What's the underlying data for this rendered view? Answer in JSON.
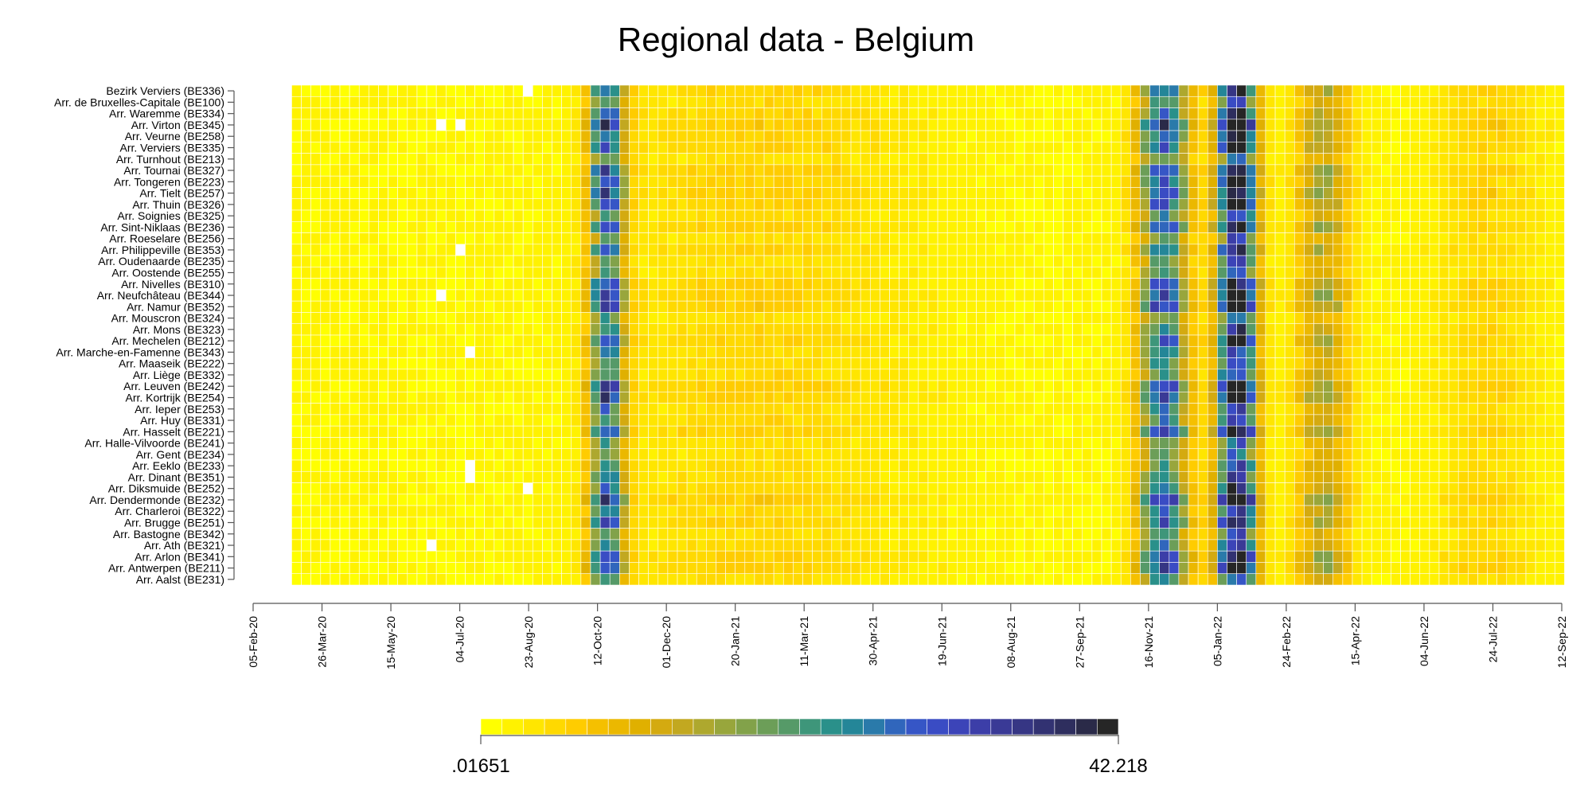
{
  "chart_data": {
    "type": "heatmap",
    "title": "Regional data - Belgium",
    "x_ticks": [
      "05-Feb-20",
      "26-Mar-20",
      "15-May-20",
      "04-Jul-20",
      "23-Aug-20",
      "12-Oct-20",
      "01-Dec-20",
      "20-Jan-21",
      "11-Mar-21",
      "30-Apr-21",
      "19-Jun-21",
      "08-Aug-21",
      "27-Sep-21",
      "16-Nov-21",
      "05-Jan-22",
      "24-Feb-22",
      "15-Apr-22",
      "04-Jun-22",
      "24-Jul-22",
      "12-Sep-22"
    ],
    "x_start": "05-Feb-20",
    "x_end": "12-Sep-22",
    "x_step_days": 7,
    "rows": [
      "Bezirk Verviers (BE336)",
      "Arr. de Bruxelles-Capitale (BE100)",
      "Arr. Waremme (BE334)",
      "Arr. Virton (BE345)",
      "Arr. Veurne (BE258)",
      "Arr. Verviers (BE335)",
      "Arr. Turnhout (BE213)",
      "Arr. Tournai (BE327)",
      "Arr. Tongeren (BE223)",
      "Arr. Tielt (BE257)",
      "Arr. Thuin (BE326)",
      "Arr. Soignies (BE325)",
      "Arr. Sint-Niklaas (BE236)",
      "Arr. Roeselare (BE256)",
      "Arr. Philippeville (BE353)",
      "Arr. Oudenaarde (BE235)",
      "Arr. Oostende (BE255)",
      "Arr. Nivelles (BE310)",
      "Arr. Neufchâteau (BE344)",
      "Arr. Namur (BE352)",
      "Arr. Mouscron (BE324)",
      "Arr. Mons (BE323)",
      "Arr. Mechelen (BE212)",
      "Arr. Marche-en-Famenne (BE343)",
      "Arr. Maaseik (BE222)",
      "Arr. Liège (BE332)",
      "Arr. Leuven (BE242)",
      "Arr. Kortrijk (BE254)",
      "Arr. Ieper (BE253)",
      "Arr. Huy (BE331)",
      "Arr. Hasselt (BE221)",
      "Arr. Halle-Vilvoorde (BE241)",
      "Arr. Gent (BE234)",
      "Arr. Eeklo (BE233)",
      "Arr. Dinant (BE351)",
      "Arr. Diksmuide (BE252)",
      "Arr. Dendermonde (BE232)",
      "Arr. Charleroi (BE322)",
      "Arr. Brugge (BE251)",
      "Arr. Bastogne (BE342)",
      "Arr. Ath (BE321)",
      "Arr. Arlon (BE341)",
      "Arr. Antwerpen (BE211)",
      "Arr. Aalst (BE231)"
    ],
    "value_min": 0.01651,
    "value_max": 42.218,
    "legend": {
      "min_label": ".01651",
      "max_label": "42.218",
      "placement": "bottom"
    },
    "colorscale": [
      "#ffff00",
      "#fff200",
      "#ffe600",
      "#ffd900",
      "#ffcc00",
      "#f5c000",
      "#ebb800",
      "#e0b000",
      "#d4aa10",
      "#c2a820",
      "#aea82e",
      "#98a63c",
      "#82a24a",
      "#6c9e58",
      "#569a68",
      "#3e967a",
      "#2a908a",
      "#248698",
      "#2a7aaa",
      "#3066bc",
      "#3656c6",
      "#3a4cc4",
      "#3c44b8",
      "#3c3ea8",
      "#3a3a96",
      "#363684",
      "#323272",
      "#2e2e5e",
      "#2a2a48",
      "#262626"
    ],
    "waves": [
      {
        "peak_date": "19-Oct-20",
        "width_weeks": 1.7,
        "amplitude": 26
      },
      {
        "peak_date": "27-Nov-21",
        "width_weeks": 2.4,
        "amplitude": 25
      },
      {
        "peak_date": "19-Jan-22",
        "width_weeks": 1.9,
        "amplitude": 40
      },
      {
        "peak_date": "23-Mar-22",
        "width_weeks": 2.6,
        "amplitude": 11
      },
      {
        "peak_date": "20-Jul-22",
        "width_weeks": 5.0,
        "amplitude": 3
      },
      {
        "peak_date": "10-Feb-21",
        "width_weeks": 14.0,
        "amplitude": 3
      }
    ],
    "missing_cells": [
      {
        "row": "Bezirk Verviers (BE336)",
        "week_start": "16-Aug-20"
      },
      {
        "row": "Arr. Virton (BE345)",
        "week_start": "14-Jun-20"
      },
      {
        "row": "Arr. Virton (BE345)",
        "week_start": "28-Jun-20"
      },
      {
        "row": "Arr. Philippeville (BE353)",
        "week_start": "28-Jun-20"
      },
      {
        "row": "Arr. Neufchâteau (BE344)",
        "week_start": "14-Jun-20"
      },
      {
        "row": "Arr. Marche-en-Famenne (BE343)",
        "week_start": "05-Jul-20"
      },
      {
        "row": "Arr. Eeklo (BE233)",
        "week_start": "05-Jul-20"
      },
      {
        "row": "Arr. Dinant (BE351)",
        "week_start": "05-Jul-20"
      },
      {
        "row": "Arr. Diksmuide (BE252)",
        "week_start": "16-Aug-20"
      },
      {
        "row": "Arr. Ath (BE321)",
        "week_start": "07-Jun-20"
      }
    ]
  }
}
